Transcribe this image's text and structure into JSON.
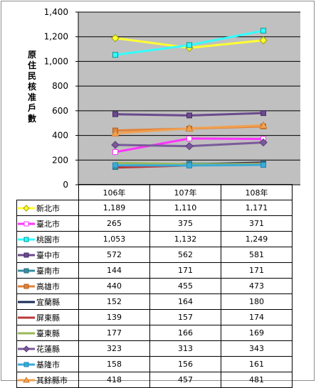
{
  "chart_data": {
    "type": "line",
    "ylabel": "原住民核准戶數",
    "ylim": [
      0,
      1400
    ],
    "yticks": [
      "0",
      "200",
      "400",
      "600",
      "800",
      "1,000",
      "1,200",
      "1,400"
    ],
    "categories": [
      "106年",
      "107年",
      "108年"
    ],
    "grid": true,
    "legend_placement": "table",
    "series": [
      {
        "name": "新北市",
        "values": [
          1189,
          1110,
          1171
        ],
        "labels": [
          "1,189",
          "1,110",
          "1,171"
        ],
        "color": "#ffff33",
        "marker": "diamond",
        "marker_fill": "#ffff33",
        "marker_stroke": "#a0a000"
      },
      {
        "name": "臺北市",
        "values": [
          265,
          375,
          371
        ],
        "labels": [
          "265",
          "375",
          "371"
        ],
        "color": "#ff33ff",
        "marker": "square-open",
        "marker_fill": "#ffffff",
        "marker_stroke": "#ff33ff"
      },
      {
        "name": "桃園市",
        "values": [
          1053,
          1132,
          1249
        ],
        "labels": [
          "1,053",
          "1,132",
          "1,249"
        ],
        "color": "#33ffff",
        "marker": "square",
        "marker_fill": "#33ffff",
        "marker_stroke": "#009999"
      },
      {
        "name": "臺中市",
        "values": [
          572,
          562,
          581
        ],
        "labels": [
          "572",
          "562",
          "581"
        ],
        "color": "#6a4a8c",
        "marker": "square",
        "marker_fill": "#6a4a8c",
        "marker_stroke": "#4a2a6c"
      },
      {
        "name": "臺南市",
        "values": [
          144,
          171,
          171
        ],
        "labels": [
          "144",
          "171",
          "171"
        ],
        "color": "#3a8ea3",
        "marker": "square",
        "marker_fill": "#3a8ea3",
        "marker_stroke": "#2a6e83"
      },
      {
        "name": "高雄市",
        "values": [
          440,
          455,
          473
        ],
        "labels": [
          "440",
          "455",
          "473"
        ],
        "color": "#e0823a",
        "marker": "square",
        "marker_fill": "#e0823a",
        "marker_stroke": "#b06020"
      },
      {
        "name": "宜蘭縣",
        "values": [
          152,
          164,
          180
        ],
        "labels": [
          "152",
          "164",
          "180"
        ],
        "color": "#1a2a5a",
        "marker": "dash",
        "marker_fill": "#1a2a5a",
        "marker_stroke": "#1a2a5a"
      },
      {
        "name": "屏東縣",
        "values": [
          139,
          157,
          174
        ],
        "labels": [
          "139",
          "157",
          "174"
        ],
        "color": "#b83a3a",
        "marker": "none",
        "marker_fill": "#b83a3a",
        "marker_stroke": "#b83a3a"
      },
      {
        "name": "臺東縣",
        "values": [
          177,
          166,
          169
        ],
        "labels": [
          "177",
          "166",
          "169"
        ],
        "color": "#9ab85a",
        "marker": "none",
        "marker_fill": "#9ab85a",
        "marker_stroke": "#9ab85a"
      },
      {
        "name": "花蓮縣",
        "values": [
          323,
          313,
          343
        ],
        "labels": [
          "323",
          "313",
          "343"
        ],
        "color": "#7a5a9a",
        "marker": "diamond",
        "marker_fill": "#7a5a9a",
        "marker_stroke": "#5a3a7a"
      },
      {
        "name": "基隆市",
        "values": [
          158,
          156,
          161
        ],
        "labels": [
          "158",
          "156",
          "161"
        ],
        "color": "#3aaad8",
        "marker": "square",
        "marker_fill": "#3aaad8",
        "marker_stroke": "#1a8ab8"
      },
      {
        "name": "其餘縣市",
        "values": [
          418,
          457,
          481
        ],
        "labels": [
          "418",
          "457",
          "481"
        ],
        "color": "#f0a050",
        "marker": "triangle",
        "marker_fill": "#f0a050",
        "marker_stroke": "#d08030"
      }
    ]
  }
}
